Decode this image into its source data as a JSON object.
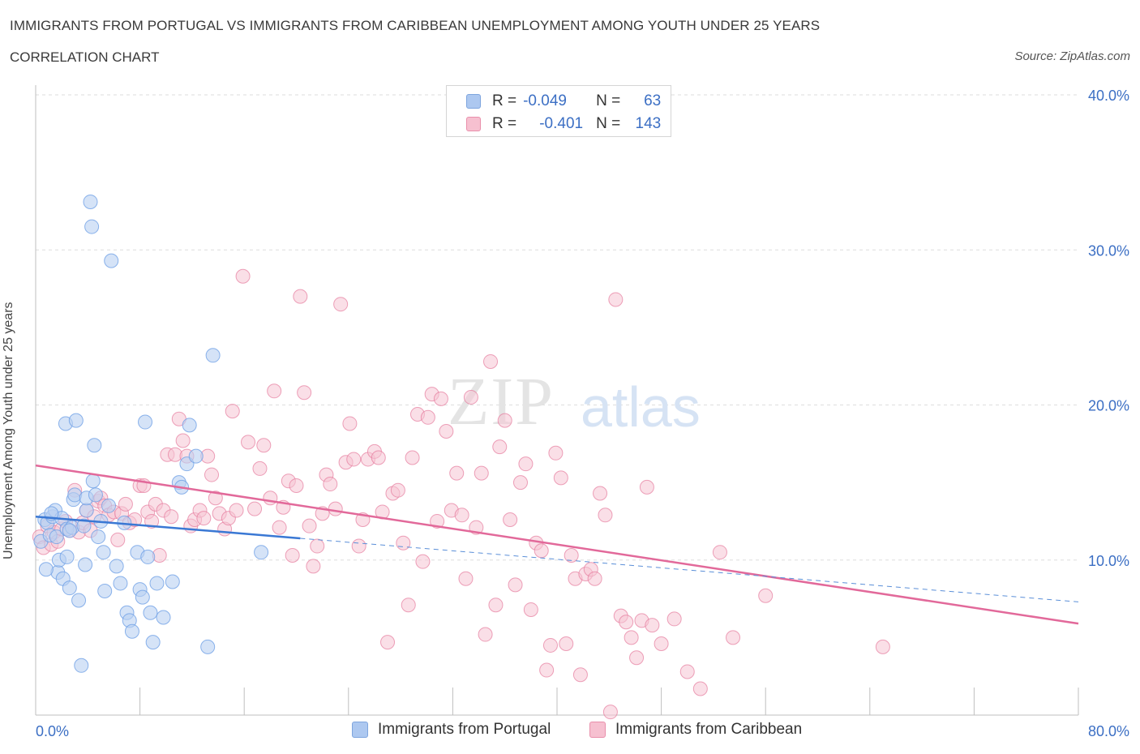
{
  "title": "IMMIGRANTS FROM PORTUGAL VS IMMIGRANTS FROM CARIBBEAN UNEMPLOYMENT AMONG YOUTH UNDER 25 YEARS",
  "subtitle": "CORRELATION CHART",
  "source": "Source: ZipAtlas.com",
  "watermark": {
    "zip": "ZIP",
    "atlas": "atlas"
  },
  "legend": {
    "rows": [
      {
        "r_label": "R =",
        "r_value": "-0.049",
        "n_label": "N =",
        "n_value": "63",
        "color": "#adc8f0",
        "border": "#7ea5de"
      },
      {
        "r_label": "R =",
        "r_value": "-0.401",
        "n_label": "N =",
        "n_value": "143",
        "color": "#f6c0d0",
        "border": "#e98fab"
      }
    ]
  },
  "bottom_legend": [
    {
      "label": "Immigrants from Portugal",
      "color": "#adc8f0",
      "border": "#7ea5de"
    },
    {
      "label": "Immigrants from Caribbean",
      "color": "#f6c0d0",
      "border": "#e98fab"
    }
  ],
  "chart_data": {
    "type": "scatter",
    "title": "IMMIGRANTS FROM PORTUGAL VS IMMIGRANTS FROM CARIBBEAN UNEMPLOYMENT AMONG YOUTH UNDER 25 YEARS",
    "subtitle": "CORRELATION CHART",
    "xlabel": "",
    "ylabel": "Unemployment Among Youth under 25 years",
    "xlim": [
      0,
      80
    ],
    "ylim": [
      0,
      40
    ],
    "x_tick_labels": [
      "0.0%",
      "80.0%"
    ],
    "y_ticks": [
      10,
      20,
      30,
      40
    ],
    "y_tick_labels": [
      "10.0%",
      "20.0%",
      "30.0%",
      "40.0%"
    ],
    "grid": true,
    "series": [
      {
        "name": "Immigrants from Portugal",
        "color": "#6fa0e6",
        "fill": "#b9d0f2",
        "trend": {
          "x": [
            0,
            20.3
          ],
          "y": [
            12.8,
            11.4
          ],
          "extended": {
            "x": [
              20.3,
              80
            ],
            "y": [
              11.4,
              7.3
            ]
          }
        },
        "points": [
          [
            0.4,
            11.2
          ],
          [
            0.7,
            12.6
          ],
          [
            0.9,
            12.4
          ],
          [
            1.1,
            11.6
          ],
          [
            1.3,
            12.8
          ],
          [
            1.5,
            13.2
          ],
          [
            1.6,
            11.5
          ],
          [
            1.7,
            9.2
          ],
          [
            1.8,
            10.0
          ],
          [
            2.0,
            12.7
          ],
          [
            2.1,
            8.8
          ],
          [
            2.3,
            18.8
          ],
          [
            2.4,
            10.2
          ],
          [
            2.4,
            12.0
          ],
          [
            2.6,
            8.2
          ],
          [
            2.8,
            12.1
          ],
          [
            2.9,
            13.9
          ],
          [
            3.0,
            14.2
          ],
          [
            3.1,
            19.0
          ],
          [
            3.3,
            7.4
          ],
          [
            3.5,
            3.2
          ],
          [
            3.7,
            12.2
          ],
          [
            3.8,
            9.7
          ],
          [
            3.9,
            13.2
          ],
          [
            3.9,
            14.0
          ],
          [
            4.2,
            33.1
          ],
          [
            4.3,
            31.5
          ],
          [
            4.4,
            15.1
          ],
          [
            4.5,
            17.4
          ],
          [
            4.6,
            14.2
          ],
          [
            4.8,
            11.5
          ],
          [
            5.0,
            12.5
          ],
          [
            5.2,
            10.5
          ],
          [
            5.3,
            8.0
          ],
          [
            5.6,
            13.5
          ],
          [
            5.8,
            29.3
          ],
          [
            6.2,
            9.6
          ],
          [
            6.5,
            8.5
          ],
          [
            6.8,
            12.4
          ],
          [
            7.0,
            6.6
          ],
          [
            7.2,
            6.1
          ],
          [
            7.4,
            5.4
          ],
          [
            7.8,
            10.5
          ],
          [
            8.0,
            8.1
          ],
          [
            8.2,
            7.6
          ],
          [
            8.4,
            18.9
          ],
          [
            8.6,
            10.2
          ],
          [
            8.8,
            6.6
          ],
          [
            9.0,
            4.7
          ],
          [
            9.3,
            8.5
          ],
          [
            9.8,
            6.3
          ],
          [
            10.5,
            8.6
          ],
          [
            11.0,
            15.0
          ],
          [
            11.2,
            14.7
          ],
          [
            11.6,
            16.2
          ],
          [
            11.8,
            18.7
          ],
          [
            12.3,
            16.7
          ],
          [
            13.2,
            4.4
          ],
          [
            13.6,
            23.2
          ],
          [
            17.3,
            10.5
          ],
          [
            0.8,
            9.4
          ],
          [
            2.6,
            11.9
          ],
          [
            1.2,
            13.0
          ]
        ]
      },
      {
        "name": "Immigrants from Caribbean",
        "color": "#e67a9c",
        "fill": "#f6c5d4",
        "trend": {
          "x": [
            0,
            80
          ],
          "y": [
            16.1,
            5.9
          ]
        },
        "points": [
          [
            0.3,
            11.5
          ],
          [
            0.6,
            10.8
          ],
          [
            0.9,
            12.2
          ],
          [
            1.2,
            11.0
          ],
          [
            1.4,
            11.8
          ],
          [
            1.7,
            11.2
          ],
          [
            2.0,
            12.0
          ],
          [
            2.3,
            12.5
          ],
          [
            2.6,
            11.9
          ],
          [
            3.0,
            14.5
          ],
          [
            3.3,
            11.8
          ],
          [
            3.6,
            12.4
          ],
          [
            3.9,
            13.2
          ],
          [
            4.2,
            11.9
          ],
          [
            4.5,
            12.8
          ],
          [
            4.8,
            13.8
          ],
          [
            5.0,
            14.0
          ],
          [
            5.3,
            13.5
          ],
          [
            5.6,
            12.9
          ],
          [
            6.0,
            13.1
          ],
          [
            6.3,
            11.3
          ],
          [
            6.6,
            13.0
          ],
          [
            6.9,
            13.6
          ],
          [
            7.2,
            12.4
          ],
          [
            7.6,
            12.6
          ],
          [
            8.0,
            14.8
          ],
          [
            8.3,
            14.8
          ],
          [
            8.6,
            13.1
          ],
          [
            8.9,
            12.5
          ],
          [
            9.2,
            13.6
          ],
          [
            9.5,
            10.3
          ],
          [
            9.8,
            13.2
          ],
          [
            10.1,
            16.8
          ],
          [
            10.4,
            12.8
          ],
          [
            10.7,
            16.8
          ],
          [
            11.0,
            19.1
          ],
          [
            11.3,
            17.7
          ],
          [
            11.6,
            16.7
          ],
          [
            11.9,
            12.2
          ],
          [
            12.2,
            12.6
          ],
          [
            12.6,
            13.2
          ],
          [
            12.9,
            12.7
          ],
          [
            13.2,
            16.7
          ],
          [
            13.5,
            15.5
          ],
          [
            13.8,
            14.0
          ],
          [
            14.1,
            13.0
          ],
          [
            14.5,
            12.0
          ],
          [
            14.8,
            12.7
          ],
          [
            15.1,
            19.6
          ],
          [
            15.4,
            13.2
          ],
          [
            15.9,
            28.3
          ],
          [
            16.3,
            17.6
          ],
          [
            16.8,
            13.3
          ],
          [
            17.2,
            15.9
          ],
          [
            17.5,
            17.4
          ],
          [
            18.0,
            14.0
          ],
          [
            18.3,
            20.9
          ],
          [
            18.7,
            12.1
          ],
          [
            19.0,
            13.4
          ],
          [
            19.4,
            15.1
          ],
          [
            19.7,
            10.3
          ],
          [
            20.0,
            14.8
          ],
          [
            20.3,
            27.0
          ],
          [
            20.6,
            20.8
          ],
          [
            21.0,
            12.2
          ],
          [
            21.3,
            9.6
          ],
          [
            21.6,
            10.9
          ],
          [
            22.0,
            13.0
          ],
          [
            22.3,
            15.5
          ],
          [
            22.6,
            14.9
          ],
          [
            23.0,
            13.3
          ],
          [
            23.4,
            26.5
          ],
          [
            23.8,
            16.3
          ],
          [
            24.1,
            18.8
          ],
          [
            24.4,
            16.5
          ],
          [
            24.8,
            10.9
          ],
          [
            25.1,
            12.6
          ],
          [
            25.5,
            16.5
          ],
          [
            26.0,
            17.0
          ],
          [
            26.3,
            16.6
          ],
          [
            26.6,
            13.1
          ],
          [
            27.0,
            4.7
          ],
          [
            27.4,
            14.3
          ],
          [
            27.8,
            14.5
          ],
          [
            28.2,
            11.1
          ],
          [
            28.6,
            7.1
          ],
          [
            28.9,
            16.6
          ],
          [
            29.3,
            19.4
          ],
          [
            29.7,
            9.9
          ],
          [
            30.1,
            19.2
          ],
          [
            30.4,
            20.7
          ],
          [
            30.8,
            12.5
          ],
          [
            31.1,
            20.4
          ],
          [
            31.5,
            18.3
          ],
          [
            31.9,
            13.2
          ],
          [
            32.3,
            15.6
          ],
          [
            32.7,
            12.9
          ],
          [
            33.0,
            8.8
          ],
          [
            33.4,
            20.5
          ],
          [
            33.8,
            12.1
          ],
          [
            34.2,
            15.6
          ],
          [
            34.5,
            5.2
          ],
          [
            34.9,
            22.8
          ],
          [
            35.3,
            7.1
          ],
          [
            35.6,
            17.3
          ],
          [
            36.0,
            19.0
          ],
          [
            36.4,
            12.6
          ],
          [
            36.8,
            8.4
          ],
          [
            37.2,
            15.0
          ],
          [
            37.6,
            16.2
          ],
          [
            38.0,
            6.8
          ],
          [
            38.4,
            11.1
          ],
          [
            38.8,
            10.6
          ],
          [
            39.2,
            2.9
          ],
          [
            39.5,
            4.5
          ],
          [
            39.9,
            16.9
          ],
          [
            40.3,
            15.3
          ],
          [
            40.7,
            4.6
          ],
          [
            41.1,
            10.3
          ],
          [
            41.4,
            8.8
          ],
          [
            41.8,
            2.6
          ],
          [
            42.2,
            9.1
          ],
          [
            42.6,
            9.4
          ],
          [
            42.9,
            8.8
          ],
          [
            43.3,
            14.3
          ],
          [
            43.7,
            12.9
          ],
          [
            44.1,
            0.2
          ],
          [
            44.5,
            26.8
          ],
          [
            44.9,
            6.4
          ],
          [
            45.3,
            6.0
          ],
          [
            45.7,
            5.0
          ],
          [
            46.1,
            3.7
          ],
          [
            46.5,
            6.1
          ],
          [
            46.9,
            14.7
          ],
          [
            47.3,
            5.8
          ],
          [
            48.0,
            4.6
          ],
          [
            49.0,
            6.2
          ],
          [
            50.0,
            2.8
          ],
          [
            51.0,
            1.7
          ],
          [
            52.5,
            10.5
          ],
          [
            53.5,
            5.0
          ],
          [
            56.0,
            7.7
          ],
          [
            65.0,
            4.4
          ]
        ]
      }
    ]
  }
}
